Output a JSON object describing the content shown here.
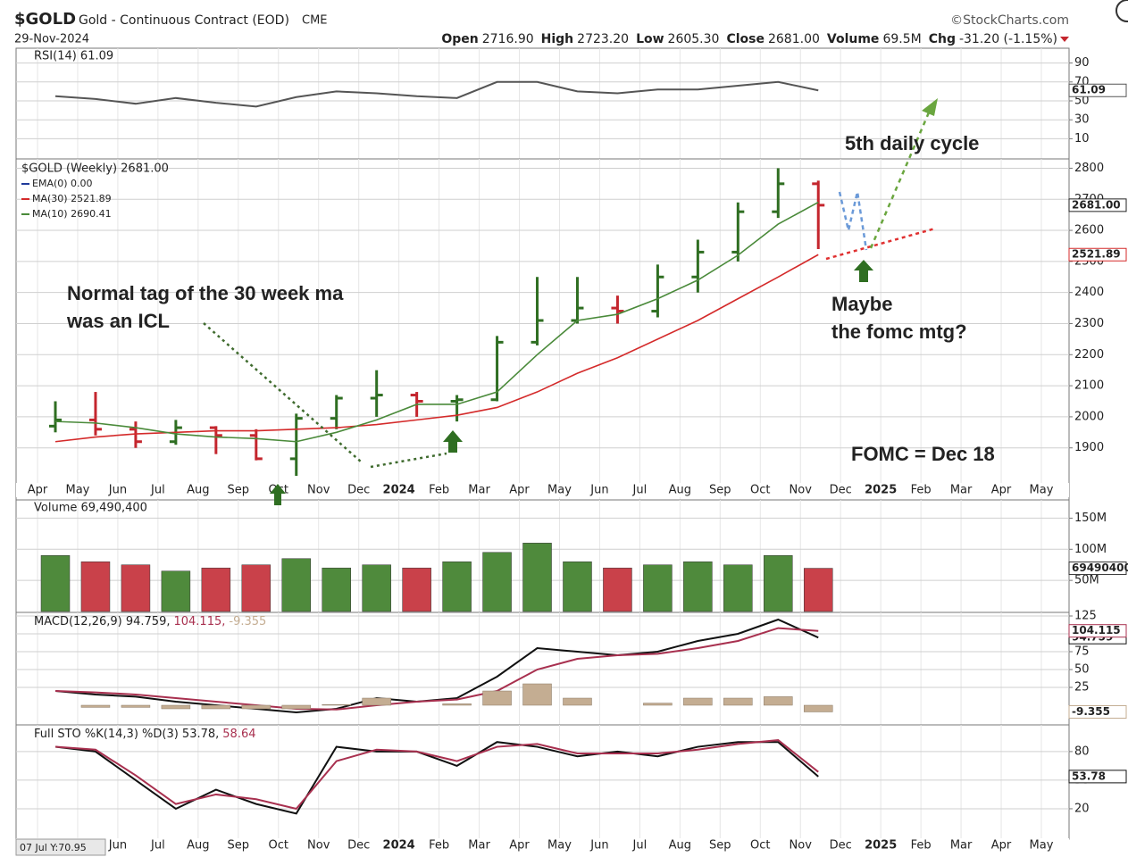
{
  "header": {
    "symbol": "$GOLD",
    "name": "Gold - Continuous Contract (EOD)",
    "exchange": "CME",
    "date": "29-Nov-2024",
    "brand": "©StockCharts.com",
    "quote": [
      {
        "label": "Open",
        "value": "2716.90"
      },
      {
        "label": "High",
        "value": "2723.20"
      },
      {
        "label": "Low",
        "value": "2605.30"
      },
      {
        "label": "Close",
        "value": "2681.00"
      },
      {
        "label": "Volume",
        "value": "69.5M"
      },
      {
        "label": "Chg",
        "value": "-31.20 (-1.15%)"
      }
    ],
    "cursor_readout": "07 Jul Y:70.95"
  },
  "annotations": [
    {
      "text": "Normal tag of the 30 week ma",
      "color": "#4a7a35"
    },
    {
      "text": "was an ICL",
      "color": "#4a7a35"
    },
    {
      "text": "5th daily cycle",
      "color": "#e03fe0"
    },
    {
      "text": "Maybe",
      "color": "#5b8fd6"
    },
    {
      "text": "the fomc mtg?",
      "color": "#5b8fd6"
    },
    {
      "text": "FOMC = Dec 18",
      "color": "#6aa63f"
    }
  ],
  "chart_data": [
    {
      "type": "line",
      "title": "RSI(14) 61.09",
      "categories": [
        "Apr",
        "May",
        "Jun",
        "Jul",
        "Aug",
        "Sep",
        "Oct",
        "Nov",
        "Dec",
        "2024",
        "Feb",
        "Mar",
        "Apr",
        "May",
        "Jun",
        "Jul",
        "Aug",
        "Sep",
        "Oct",
        "Nov",
        "Dec",
        "2025",
        "Feb",
        "Mar",
        "Apr",
        "May"
      ],
      "ylim": [
        0,
        100
      ],
      "yticks": [
        10,
        30,
        50,
        70,
        90
      ],
      "grid": true,
      "series": [
        {
          "name": "RSI",
          "color": "#555555",
          "tag": "61.09",
          "values": [
            55,
            52,
            47,
            53,
            48,
            44,
            54,
            60,
            58,
            55,
            53,
            70,
            70,
            60,
            58,
            62,
            62,
            66,
            70,
            61.09,
            null,
            null,
            null,
            null,
            null,
            null
          ]
        }
      ]
    },
    {
      "type": "ohlc",
      "title": "$GOLD (Weekly) 2681.00",
      "categories": [
        "Apr",
        "May",
        "Jun",
        "Jul",
        "Aug",
        "Sep",
        "Oct",
        "Nov",
        "Dec",
        "2024",
        "Feb",
        "Mar",
        "Apr",
        "May",
        "Jun",
        "Jul",
        "Aug",
        "Sep",
        "Oct",
        "Nov",
        "Dec",
        "2025",
        "Feb",
        "Mar",
        "Apr",
        "May"
      ],
      "ylim": [
        1790,
        2830
      ],
      "yticks": [
        1900,
        2000,
        2100,
        2200,
        2300,
        2400,
        2500,
        2600,
        2700,
        2800
      ],
      "grid": true,
      "up_color": "#2f6e22",
      "down_color": "#c4262e",
      "close_tag": "2681.00",
      "open": [
        1970,
        1990,
        1960,
        1920,
        1965,
        1940,
        1865,
        1995,
        2060,
        2070,
        2050,
        2055,
        2240,
        2310,
        2350,
        2340,
        2450,
        2530,
        2660,
        2750,
        null,
        null,
        null,
        null,
        null,
        null
      ],
      "high": [
        2050,
        2080,
        1985,
        1990,
        1970,
        1960,
        2010,
        2070,
        2150,
        2080,
        2070,
        2260,
        2450,
        2450,
        2390,
        2490,
        2570,
        2690,
        2800,
        2760,
        null,
        null,
        null,
        null,
        null,
        null
      ],
      "low": [
        1950,
        1940,
        1900,
        1910,
        1880,
        1860,
        1810,
        1960,
        2000,
        2000,
        1985,
        2050,
        2230,
        2300,
        2300,
        2320,
        2400,
        2500,
        2640,
        2540,
        null,
        null,
        null,
        null,
        null,
        null
      ],
      "close": [
        1990,
        1960,
        1920,
        1965,
        1940,
        1865,
        1995,
        2060,
        2070,
        2050,
        2055,
        2240,
        2310,
        2350,
        2340,
        2450,
        2530,
        2660,
        2750,
        2681,
        null,
        null,
        null,
        null,
        null,
        null
      ],
      "legend_note": {
        "text": "EMA(0) 0.00",
        "color": "#1f3a9a"
      },
      "series": [
        {
          "name": "MA(30) 2521.89",
          "color": "#d42a2a",
          "tag": "2521.89",
          "values": [
            1920,
            1935,
            1945,
            1950,
            1955,
            1955,
            1960,
            1965,
            1975,
            1990,
            2005,
            2030,
            2080,
            2140,
            2190,
            2250,
            2310,
            2380,
            2450,
            2521.89,
            null,
            null,
            null,
            null,
            null,
            null
          ]
        },
        {
          "name": "MA(10) 2690.41",
          "color": "#4a8a3a",
          "values": [
            1985,
            1980,
            1965,
            1945,
            1935,
            1930,
            1920,
            1950,
            1990,
            2040,
            2040,
            2080,
            2200,
            2310,
            2330,
            2380,
            2440,
            2520,
            2620,
            2690.41,
            null,
            null,
            null,
            null,
            null,
            null
          ]
        }
      ]
    },
    {
      "type": "bar",
      "title": "Volume 69,490,400",
      "categories": [
        "Apr",
        "May",
        "Jun",
        "Jul",
        "Aug",
        "Sep",
        "Oct",
        "Nov",
        "Dec",
        "2024",
        "Feb",
        "Mar",
        "Apr",
        "May",
        "Jun",
        "Jul",
        "Aug",
        "Sep",
        "Oct",
        "Nov",
        "Dec",
        "2025",
        "Feb",
        "Mar",
        "Apr",
        "May"
      ],
      "ylim": [
        0,
        175000000
      ],
      "yticks": [
        {
          "value": 50000000,
          "label": "50M"
        },
        {
          "value": 100000000,
          "label": "100M"
        },
        {
          "value": 150000000,
          "label": "150M"
        }
      ],
      "grid": true,
      "series": [
        {
          "name": "Volume",
          "tag": "69490400",
          "values": [
            90000000,
            80000000,
            75000000,
            65000000,
            70000000,
            75000000,
            85000000,
            70000000,
            75000000,
            70000000,
            80000000,
            95000000,
            110000000,
            80000000,
            70000000,
            75000000,
            80000000,
            75000000,
            90000000,
            69490400,
            null,
            null,
            null,
            null,
            null,
            null
          ]
        }
      ]
    },
    {
      "type": "line",
      "categories": [
        "Apr",
        "May",
        "Jun",
        "Jul",
        "Aug",
        "Sep",
        "Oct",
        "Nov",
        "Dec",
        "2024",
        "Feb",
        "Mar",
        "Apr",
        "May",
        "Jun",
        "Jul",
        "Aug",
        "Sep",
        "Oct",
        "Nov",
        "Dec",
        "2025",
        "Feb",
        "Mar",
        "Apr",
        "May"
      ],
      "ylim": [
        -25,
        130
      ],
      "yticks": [
        25,
        50,
        75,
        100,
        125
      ],
      "grid": true,
      "series": [
        {
          "name": "MACD(12,26,9) 94.759,",
          "color": "#111111",
          "tag": "94.759",
          "values": [
            20,
            15,
            12,
            5,
            0,
            -5,
            -10,
            -5,
            10,
            5,
            10,
            40,
            80,
            75,
            70,
            75,
            90,
            100,
            120,
            94.759,
            null,
            null,
            null,
            null,
            null,
            null
          ]
        },
        {
          "name": "104.115,",
          "color": "#a8304f",
          "tag": "104.115",
          "values": [
            20,
            18,
            15,
            10,
            5,
            0,
            -5,
            -6,
            0,
            5,
            8,
            20,
            50,
            65,
            70,
            72,
            80,
            90,
            108,
            104.115,
            null,
            null,
            null,
            null,
            null,
            null
          ]
        },
        {
          "name": "-9.355",
          "color": "#c4ad92",
          "style": "bar",
          "tag": "-9.355",
          "values": [
            0,
            -3,
            -3,
            -5,
            -5,
            -5,
            -5,
            1,
            10,
            0,
            2,
            20,
            30,
            10,
            0,
            3,
            10,
            10,
            12,
            -9.355,
            null,
            null,
            null,
            null,
            null,
            null
          ]
        }
      ]
    },
    {
      "type": "line",
      "categories": [
        "Apr",
        "May",
        "Jun",
        "Jul",
        "Aug",
        "Sep",
        "Oct",
        "Nov",
        "Dec",
        "2024",
        "Feb",
        "Mar",
        "Apr",
        "May",
        "Jun",
        "Jul",
        "Aug",
        "Sep",
        "Oct",
        "Nov",
        "Dec",
        "2025",
        "Feb",
        "Mar",
        "Apr",
        "May"
      ],
      "ylim": [
        -10,
        108
      ],
      "yticks": [
        20,
        50,
        80
      ],
      "grid": true,
      "series": [
        {
          "name": "Full STO %K(14,3) %D(3) 53.78,",
          "color": "#111111",
          "tag": "53.78",
          "values": [
            85,
            80,
            50,
            20,
            40,
            25,
            15,
            85,
            80,
            80,
            65,
            90,
            85,
            75,
            80,
            75,
            85,
            90,
            90,
            53.78,
            null,
            null,
            null,
            null,
            null,
            null
          ]
        },
        {
          "name": "58.64",
          "color": "#a8304f",
          "values": [
            85,
            82,
            55,
            25,
            35,
            30,
            20,
            70,
            82,
            80,
            70,
            85,
            88,
            78,
            78,
            78,
            82,
            88,
            92,
            58.64,
            null,
            null,
            null,
            null,
            null,
            null
          ]
        }
      ]
    }
  ]
}
